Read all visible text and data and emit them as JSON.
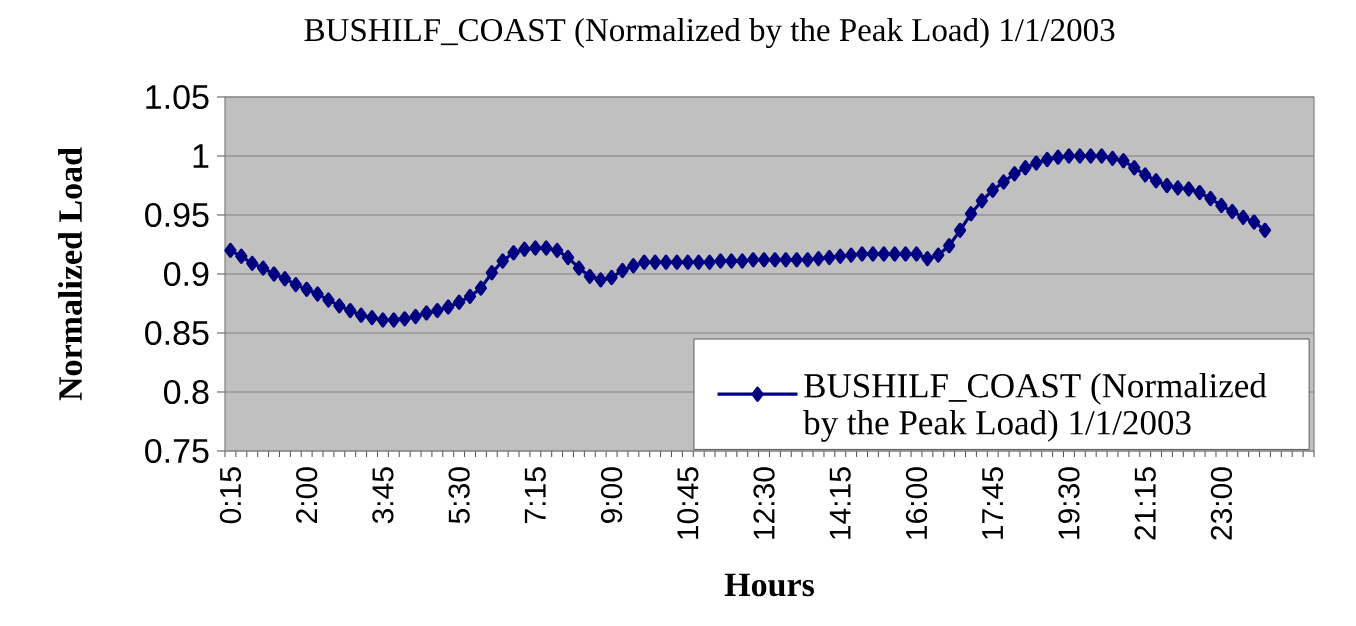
{
  "chart_data": {
    "type": "line",
    "title": "BUSHILF_COAST (Normalized by the Peak Load) 1/1/2003",
    "xlabel": "Hours",
    "ylabel": "Normalized Load",
    "categories": [
      "0:15",
      null,
      null,
      null,
      null,
      null,
      null,
      "2:00",
      null,
      null,
      null,
      null,
      null,
      null,
      "3:45",
      null,
      null,
      null,
      null,
      null,
      null,
      "5:30",
      null,
      null,
      null,
      null,
      null,
      null,
      "7:15",
      null,
      null,
      null,
      null,
      null,
      null,
      "9:00",
      null,
      null,
      null,
      null,
      null,
      null,
      "10:45",
      null,
      null,
      null,
      null,
      null,
      null,
      "12:30",
      null,
      null,
      null,
      null,
      null,
      null,
      "14:15",
      null,
      null,
      null,
      null,
      null,
      null,
      "16:00",
      null,
      null,
      null,
      null,
      null,
      null,
      "17:45",
      null,
      null,
      null,
      null,
      null,
      null,
      "19:30",
      null,
      null,
      null,
      null,
      null,
      null,
      "21:15",
      null,
      null,
      null,
      null,
      null,
      null,
      "23:00",
      null,
      null,
      null,
      null,
      null,
      null,
      null,
      null
    ],
    "series": [
      {
        "name": "BUSHILF_COAST (Normalized by the Peak Load) 1/1/2003",
        "color": "#000080",
        "values": [
          0.92,
          0.915,
          0.909,
          0.905,
          0.9,
          0.896,
          0.891,
          0.887,
          0.883,
          0.878,
          0.873,
          0.869,
          0.865,
          0.863,
          0.861,
          0.861,
          0.862,
          0.864,
          0.867,
          0.869,
          0.872,
          0.876,
          0.881,
          0.888,
          0.901,
          0.911,
          0.918,
          0.921,
          0.922,
          0.922,
          0.92,
          0.914,
          0.905,
          0.898,
          0.895,
          0.897,
          0.903,
          0.907,
          0.91,
          0.91,
          0.91,
          0.91,
          0.91,
          0.91,
          0.91,
          0.911,
          0.911,
          0.911,
          0.912,
          0.912,
          0.912,
          0.912,
          0.912,
          0.912,
          0.913,
          0.914,
          0.915,
          0.916,
          0.917,
          0.917,
          0.917,
          0.917,
          0.917,
          0.917,
          0.913,
          0.916,
          0.924,
          0.937,
          0.951,
          0.962,
          0.971,
          0.978,
          0.985,
          0.99,
          0.994,
          0.997,
          0.999,
          1.0,
          1.0,
          1.0,
          1.0,
          0.998,
          0.996,
          0.99,
          0.984,
          0.979,
          0.975,
          0.973,
          0.972,
          0.969,
          0.964,
          0.958,
          0.953,
          0.948,
          0.944,
          0.937,
          null,
          null,
          null,
          null
        ]
      }
    ],
    "ylim": [
      0.75,
      1.05
    ],
    "yticks": [
      0.75,
      0.8,
      0.85,
      0.9,
      0.95,
      1,
      1.05
    ],
    "grid": "y",
    "legend": "bottom right",
    "marker": "diamond",
    "line_style": "solid"
  }
}
